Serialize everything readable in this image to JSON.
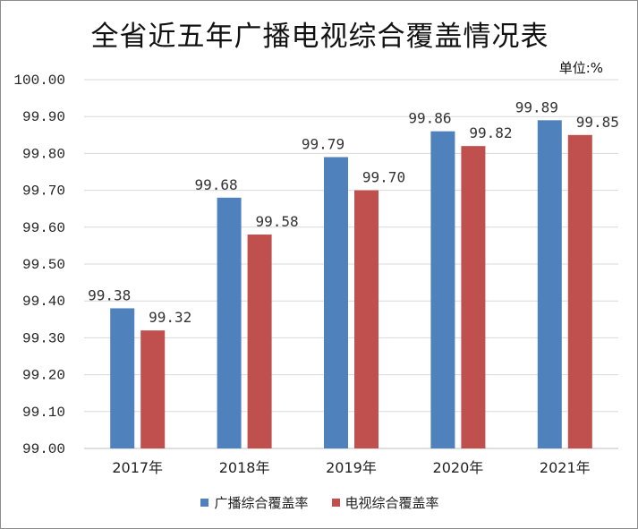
{
  "title": "全省近五年广播电视综合覆盖情况表",
  "unit": "单位:%",
  "chart_data": {
    "type": "bar",
    "title": "全省近五年广播电视综合覆盖情况表",
    "categories": [
      "2017年",
      "2018年",
      "2019年",
      "2020年",
      "2021年"
    ],
    "series": [
      {
        "name": "广播综合覆盖率",
        "color": "#4f81bd",
        "values": [
          99.38,
          99.68,
          99.79,
          99.86,
          99.89
        ],
        "labels": [
          "99.38",
          "99.68",
          "99.79",
          "99.86",
          "99.89"
        ]
      },
      {
        "name": "电视综合覆盖率",
        "color": "#c0504d",
        "values": [
          99.32,
          99.58,
          99.7,
          99.82,
          99.85
        ],
        "labels": [
          "99.32",
          "99.58",
          "99.70",
          "99.82",
          "99.85"
        ]
      }
    ],
    "ylim": [
      99.0,
      100.0
    ],
    "yticks": [
      "99.00",
      "99.10",
      "99.20",
      "99.30",
      "99.40",
      "99.50",
      "99.60",
      "99.70",
      "99.80",
      "99.90",
      "100.00"
    ],
    "grid": true,
    "legend_position": "bottom"
  }
}
